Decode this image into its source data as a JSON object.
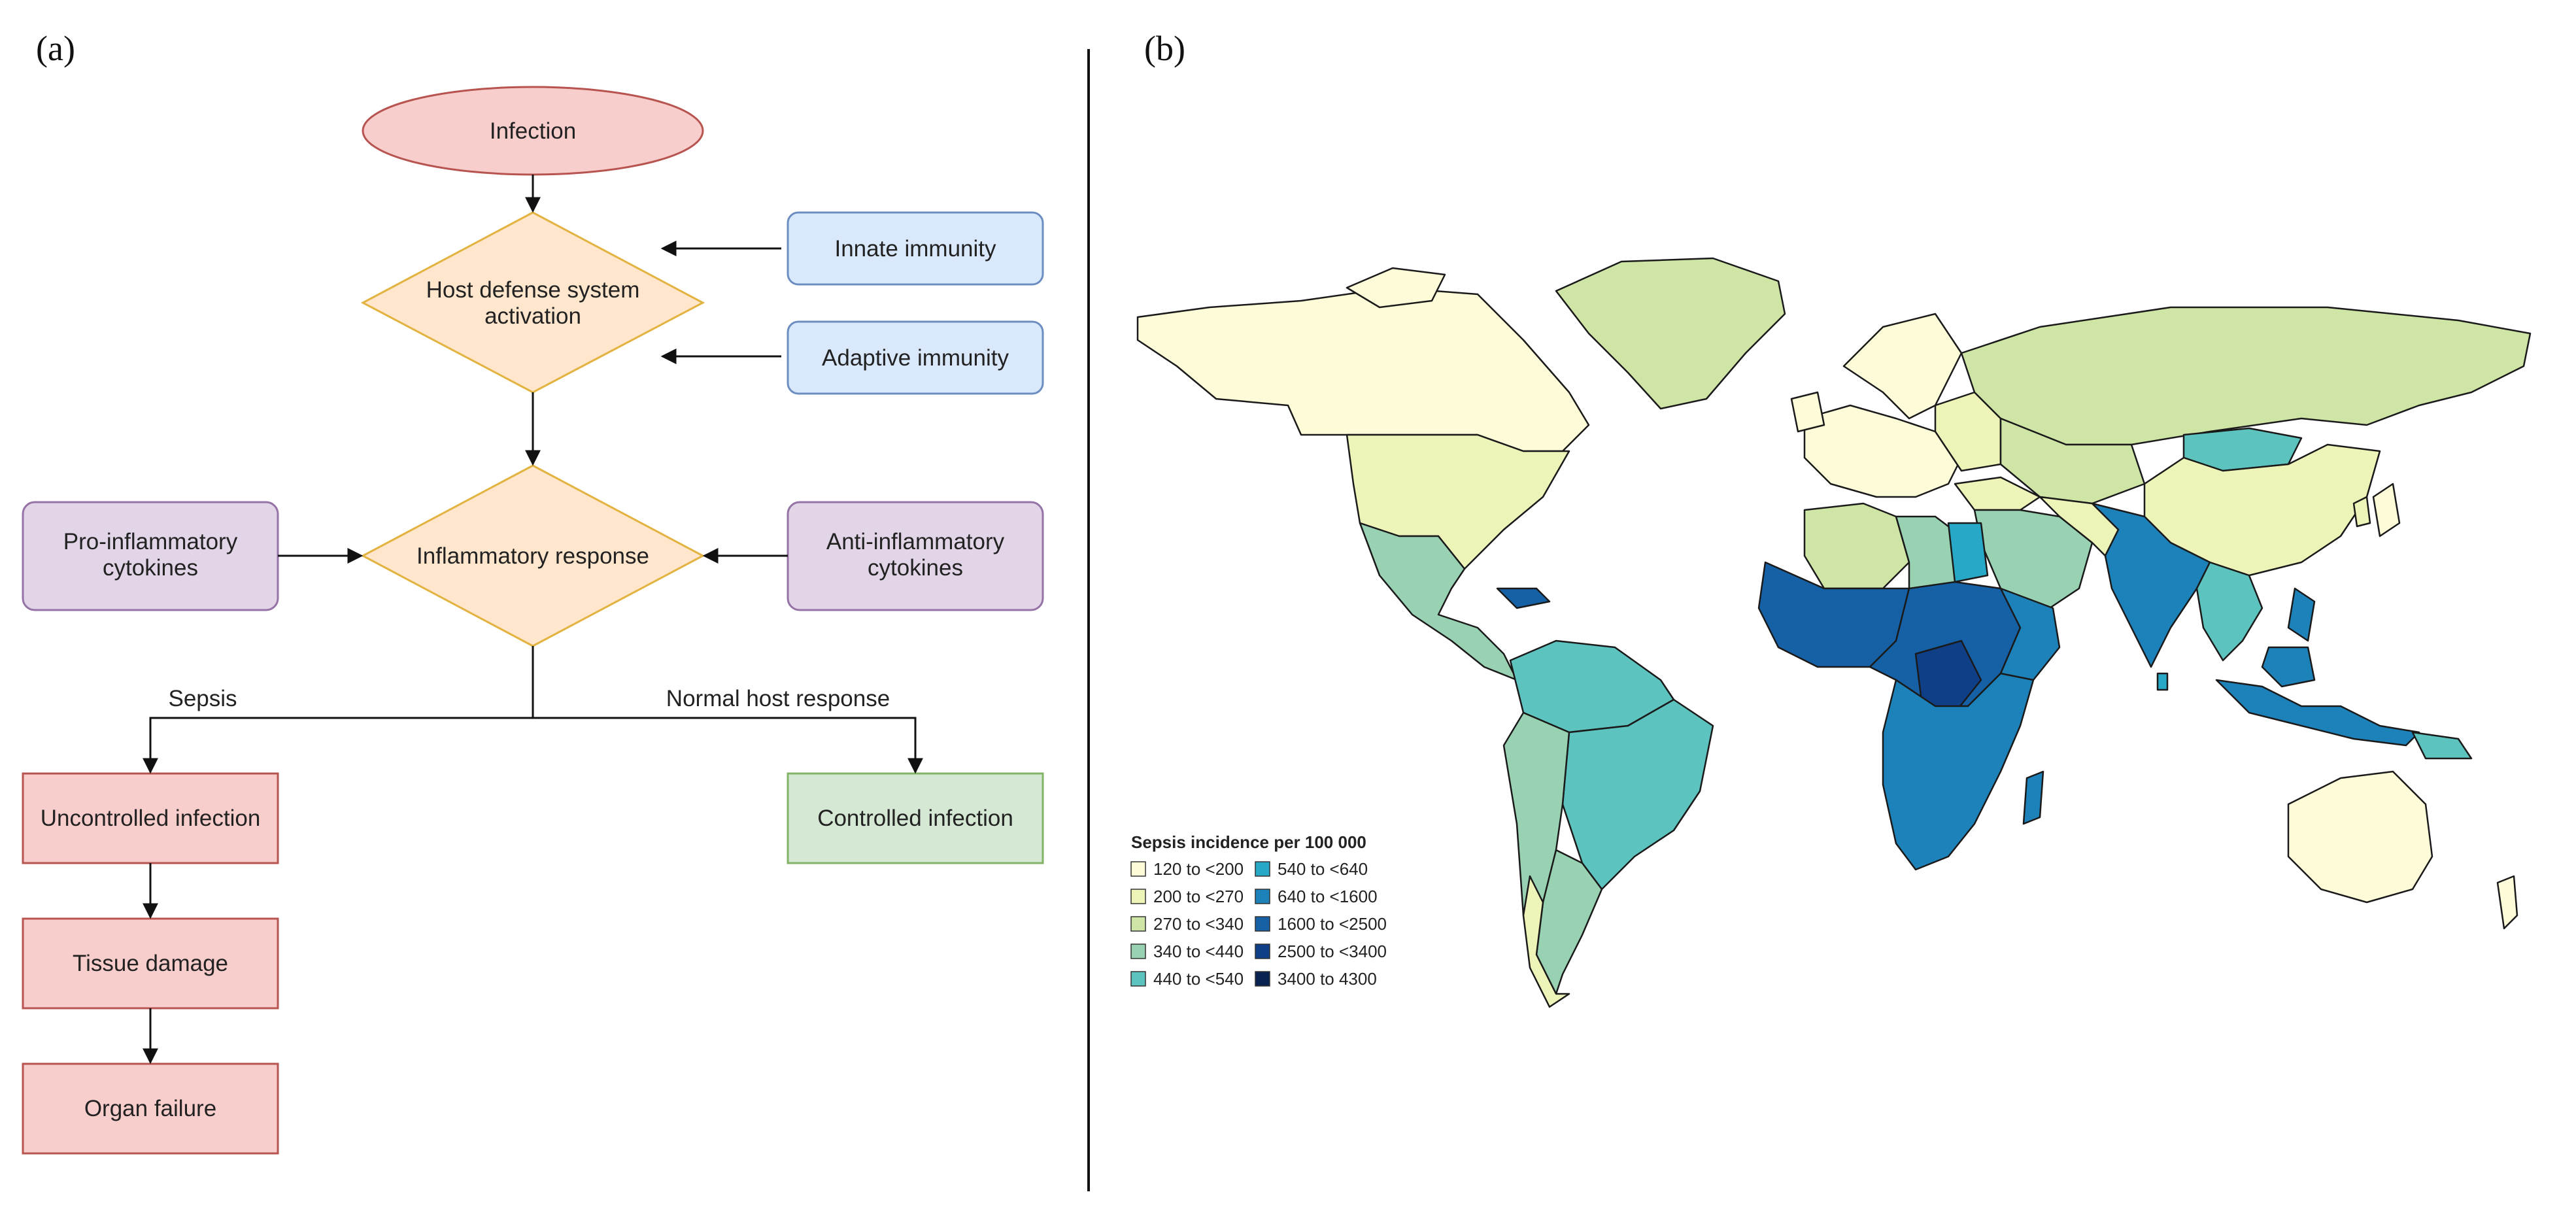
{
  "panel_a": {
    "tag": "(a)",
    "nodes": {
      "infection": "Infection",
      "host_line1": "Host defense system",
      "host_line2": "activation",
      "innate": "Innate immunity",
      "adaptive": "Adaptive immunity",
      "inflammatory": "Inflammatory response",
      "pro_line1": "Pro-inflammatory",
      "pro_line2": "cytokines",
      "anti_line1": "Anti-inflammatory",
      "anti_line2": "cytokines",
      "uncontrolled": "Uncontrolled infection",
      "controlled": "Controlled infection",
      "tissue": "Tissue damage",
      "organ": "Organ failure"
    },
    "edges": {
      "sepsis": "Sepsis",
      "normal": "Normal host response"
    }
  },
  "panel_b": {
    "tag": "(b)",
    "legend": {
      "title": "Sepsis incidence per 100 000",
      "bins": [
        {
          "label": "120 to <200",
          "color": "#fdfbd8"
        },
        {
          "label": "200 to <270",
          "color": "#eef3b8"
        },
        {
          "label": "270 to <340",
          "color": "#cfe5a6"
        },
        {
          "label": "340 to <440",
          "color": "#98d2b2"
        },
        {
          "label": "440 to <540",
          "color": "#5dc3be"
        },
        {
          "label": "540 to <640",
          "color": "#27a8c6"
        },
        {
          "label": "640 to <1600",
          "color": "#1e82ba"
        },
        {
          "label": "1600 to <2500",
          "color": "#1660a6"
        },
        {
          "label": "2500 to <3400",
          "color": "#0f3f86"
        },
        {
          "label": "3400 to 4300",
          "color": "#09224f"
        }
      ]
    }
  },
  "colors": {
    "red_fill": "#f8cecc",
    "red_stroke": "#b85450",
    "orange_fill": "#ffe6cc",
    "orange_stroke": "#e2b340",
    "blue_fill": "#dae8fc",
    "blue_stroke": "#6c8ebf",
    "purple_fill": "#e1d5e7",
    "purple_stroke": "#9673a6",
    "green_fill": "#d5e8d4",
    "green_stroke": "#82b366"
  }
}
